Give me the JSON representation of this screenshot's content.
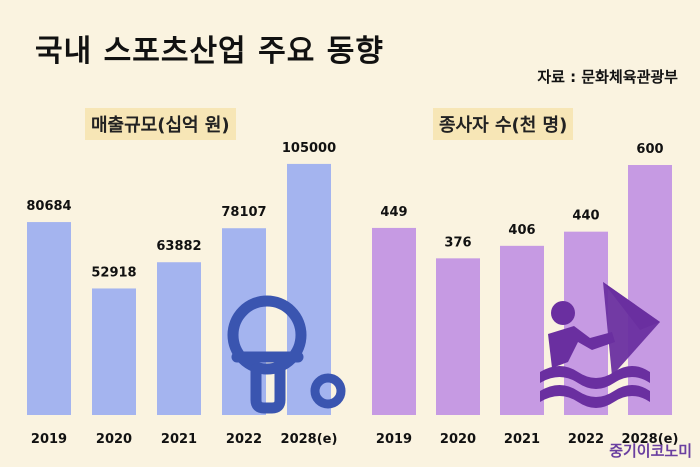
{
  "header": {
    "title": "국내 스포츠산업 주요 동향",
    "source": "자료 : 문화체육관광부"
  },
  "watermark": "중기이코노미",
  "colors": {
    "background": "#faf3e0",
    "left_bar": "#a4b4ef",
    "right_bar": "#c69ae3",
    "left_icon": "#3a55b0",
    "right_icon": "#6a2fa0"
  },
  "icons": {
    "left": "ping-pong-paddle-icon",
    "right": "windsurfing-icon"
  },
  "chart_data": [
    {
      "type": "bar",
      "title": "매출규모(십억 원)",
      "categories": [
        "2019",
        "2020",
        "2021",
        "2022",
        "2028(e)"
      ],
      "values": [
        80684,
        52918,
        63882,
        78107,
        105000
      ],
      "ylim": [
        0,
        115000
      ],
      "grid": false,
      "legend": "none"
    },
    {
      "type": "bar",
      "title": "종사자 수(천 명)",
      "categories": [
        "2019",
        "2020",
        "2021",
        "2022",
        "2028(e)"
      ],
      "values": [
        449,
        376,
        406,
        440,
        600
      ],
      "ylim": [
        0,
        660
      ],
      "grid": false,
      "legend": "none"
    }
  ]
}
